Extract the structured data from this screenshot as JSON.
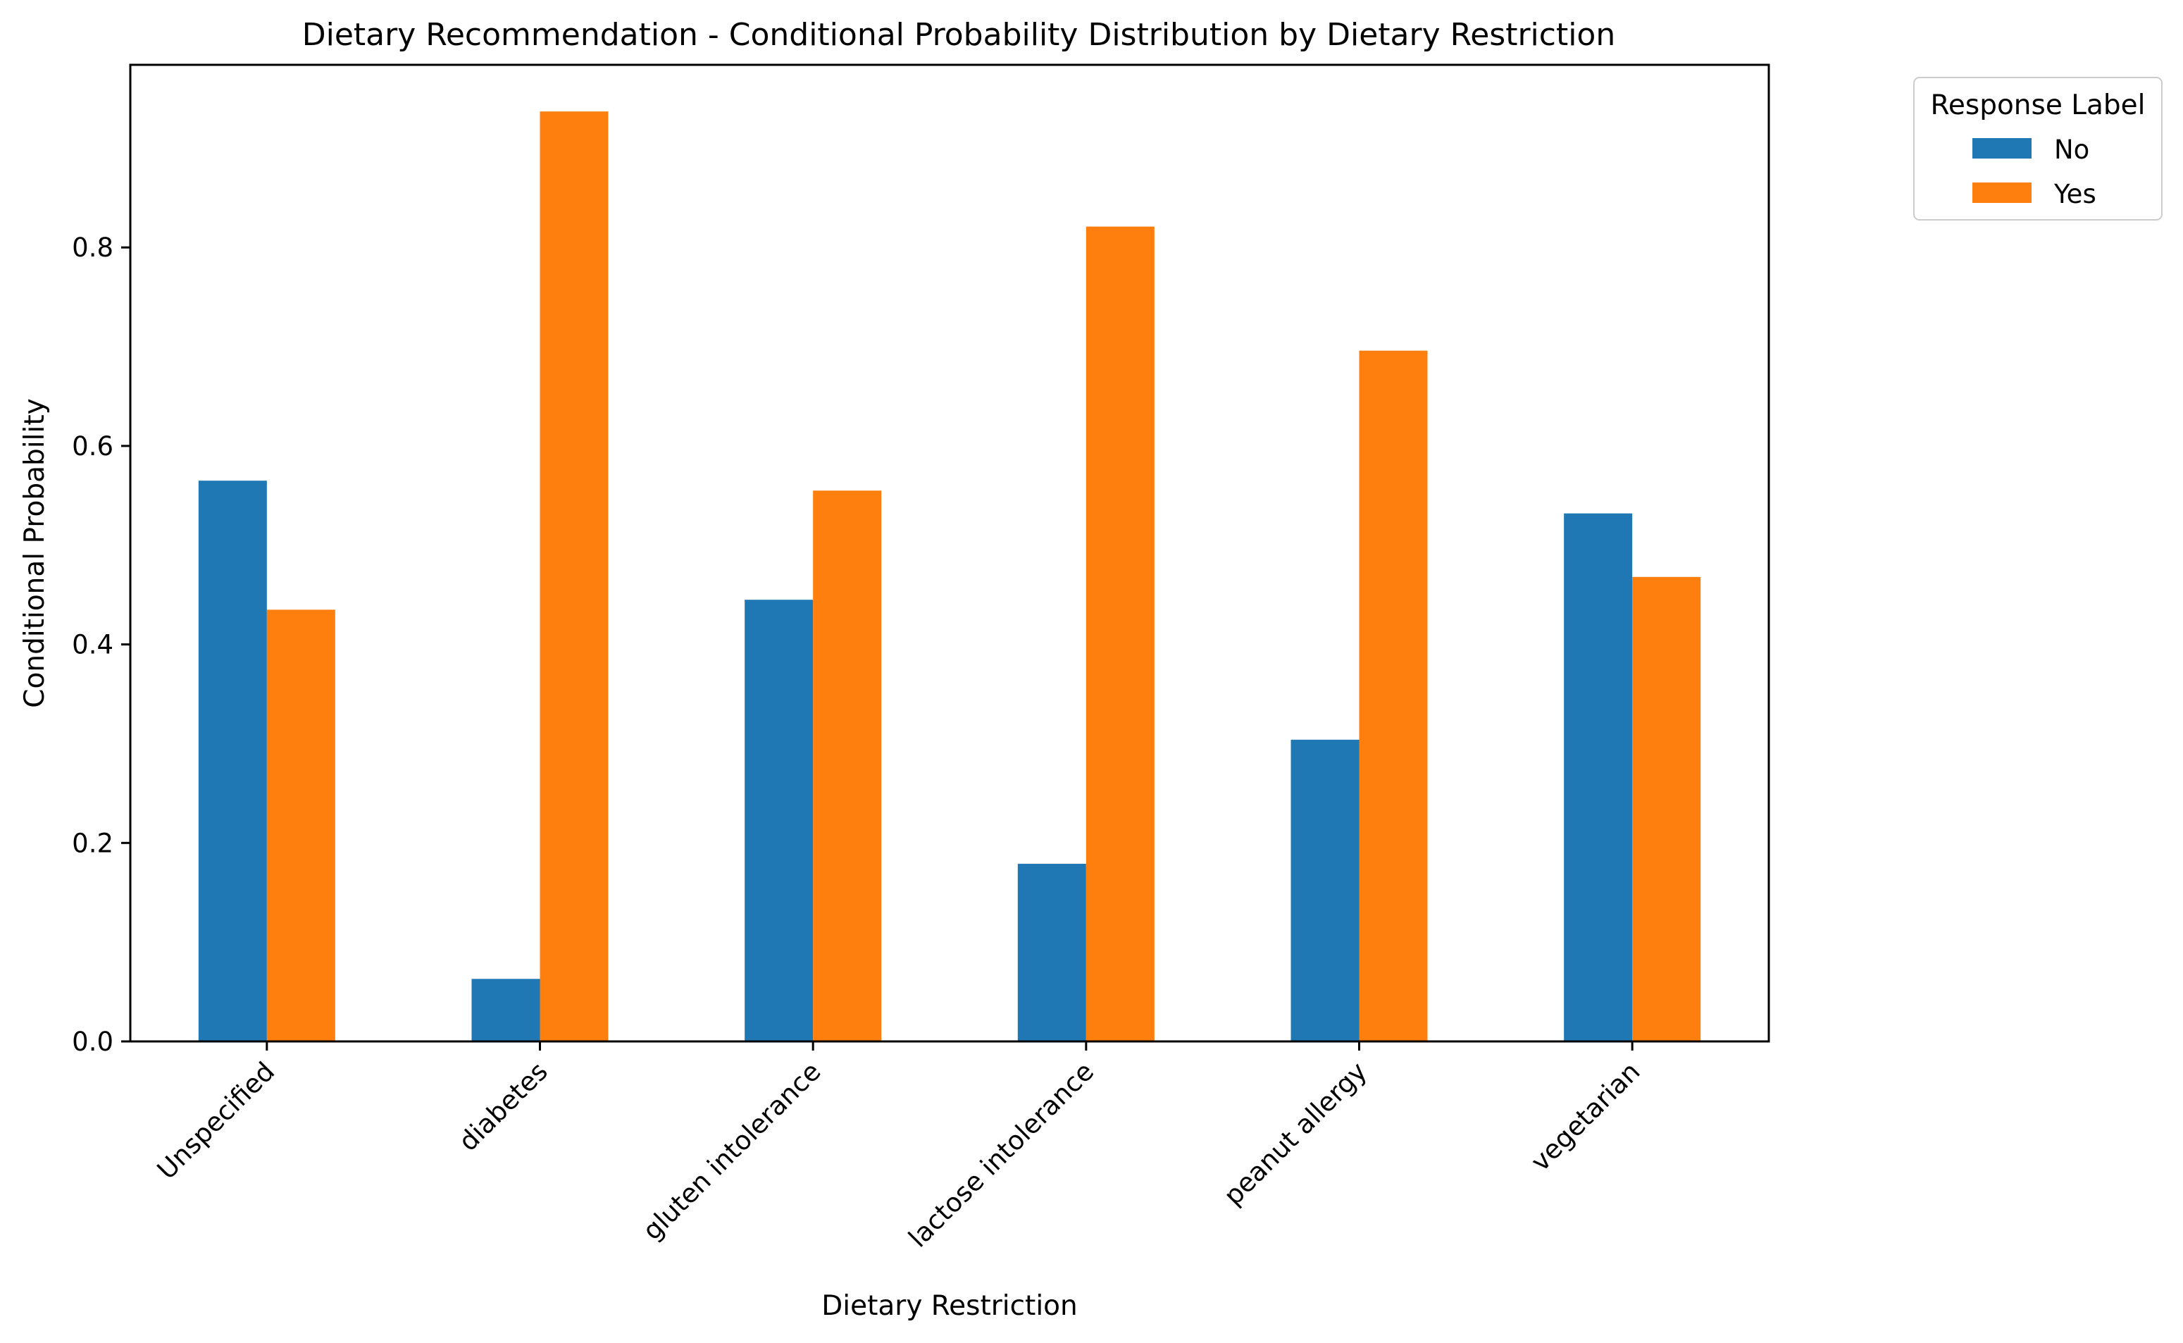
{
  "chart_data": {
    "type": "bar",
    "title": "Dietary Recommendation - Conditional Probability Distribution by Dietary Restriction",
    "xlabel": "Dietary Restriction",
    "ylabel": "Conditional Probability",
    "categories": [
      "Unspecified",
      "diabetes",
      "gluten intolerance",
      "lactose intolerance",
      "peanut allergy",
      "vegetarian"
    ],
    "series": [
      {
        "name": "No",
        "color": "#1f77b4",
        "values": [
          0.565,
          0.063,
          0.445,
          0.179,
          0.304,
          0.532
        ]
      },
      {
        "name": "Yes",
        "color": "#ff7f0e",
        "values": [
          0.435,
          0.937,
          0.555,
          0.821,
          0.696,
          0.468
        ]
      }
    ],
    "ylim": [
      0,
      0.984
    ],
    "yticks": [
      0.0,
      0.2,
      0.4,
      0.6,
      0.8
    ],
    "ytick_labels": [
      "0.0",
      "0.2",
      "0.4",
      "0.6",
      "0.8"
    ],
    "legend": {
      "title": "Response Label",
      "placement": "outside upper right"
    },
    "grid": false
  }
}
